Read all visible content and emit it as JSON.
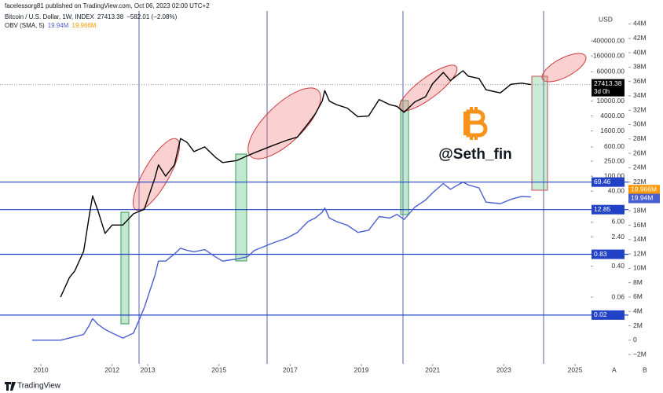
{
  "chart_data": {
    "type": "line",
    "subtitle": "facelessorg81 published on TradingView.com, Oct 06, 2023 02:00 UTC+2",
    "change": "−582.01 (−2.08%)",
    "countdown": "3d 0h",
    "currency": "USD",
    "axis_buttons": [
      "A",
      "B"
    ],
    "watermark": "@Seth_fin",
    "brand": "TradingView",
    "x": [
      2009.75,
      2010.55,
      2010.8,
      2010.95,
      2011.2,
      2011.35,
      2011.45,
      2011.6,
      2011.8,
      2012.0,
      2012.3,
      2012.6,
      2012.9,
      2013.2,
      2013.3,
      2013.5,
      2013.75,
      2013.92,
      2014.1,
      2014.3,
      2014.6,
      2014.9,
      2015.1,
      2015.5,
      2015.8,
      2016.0,
      2016.5,
      2016.9,
      2017.2,
      2017.5,
      2017.7,
      2017.9,
      2017.97,
      2018.1,
      2018.3,
      2018.6,
      2018.9,
      2019.2,
      2019.5,
      2019.8,
      2020.0,
      2020.2,
      2020.5,
      2020.8,
      2021.0,
      2021.3,
      2021.5,
      2021.85,
      2022.0,
      2022.3,
      2022.5,
      2022.9,
      2023.2,
      2023.5,
      2023.76
    ],
    "series": [
      {
        "name": "Bitcoin / U.S. Dollar, 1W, INDEX",
        "color": "#000000",
        "values": [
          null,
          0.06,
          0.2,
          0.3,
          1,
          8,
          30,
          12,
          3,
          5,
          5,
          10,
          13,
          90,
          200,
          100,
          200,
          1000,
          800,
          450,
          600,
          320,
          230,
          260,
          350,
          420,
          650,
          900,
          1100,
          2500,
          4500,
          10000,
          19000,
          10000,
          8000,
          6500,
          3800,
          4000,
          11000,
          8000,
          7200,
          5000,
          9500,
          13000,
          29000,
          58000,
          35000,
          64000,
          46000,
          40000,
          20000,
          16500,
          28000,
          30000,
          27413.38
        ]
      },
      {
        "name": "OBV (SMA, 5)",
        "color": "#4a5fd0",
        "axis": "y2",
        "last_label": "19.94M",
        "values": [
          0,
          0,
          0.3,
          0.5,
          0.8,
          2,
          3,
          2.2,
          1.5,
          1,
          0.3,
          1,
          4.5,
          9,
          11,
          11,
          12,
          12.8,
          12.5,
          12.3,
          12.6,
          11.6,
          11,
          11.3,
          11.6,
          12.5,
          13.5,
          14.2,
          15,
          16.5,
          17,
          17.8,
          18.4,
          17,
          16.5,
          16,
          15,
          15.3,
          17.2,
          17,
          17.5,
          16.8,
          18.5,
          19.5,
          20.5,
          21.8,
          21,
          22,
          21.6,
          21.2,
          19.2,
          19,
          19.6,
          20,
          19.94
        ]
      }
    ],
    "sma_label": {
      "value": 19.966,
      "label": "19.966M",
      "color": "#ff9800"
    },
    "xlim": [
      2008.85,
      2025.44
    ],
    "xticks": [
      2010,
      2012,
      2013,
      2015,
      2017,
      2019,
      2021,
      2023,
      2025
    ],
    "ylim": [
      0.001,
      2500000
    ],
    "log_scale": true,
    "yticks": [
      {
        "value": 400000,
        "label": "400000.00"
      },
      {
        "value": 160000,
        "label": "160000.00"
      },
      {
        "value": 60000,
        "label": "60000.00"
      },
      {
        "value": 10000,
        "label": "10000.00"
      },
      {
        "value": 4000,
        "label": "4000.00"
      },
      {
        "value": 1600,
        "label": "1600.00"
      },
      {
        "value": 600,
        "label": "600.00"
      },
      {
        "value": 250,
        "label": "250.00"
      },
      {
        "value": 100,
        "label": "100.00"
      },
      {
        "value": 40,
        "label": "40.00"
      },
      {
        "value": 6,
        "label": "6.00"
      },
      {
        "value": 2.4,
        "label": "2.40"
      },
      {
        "value": 0.4,
        "label": "0.40"
      },
      {
        "value": 0.06,
        "label": "0.06"
      }
    ],
    "y2lim": [
      -3.3,
      45.8
    ],
    "y2ticks": [
      {
        "value": 44,
        "label": "44M"
      },
      {
        "value": 42,
        "label": "42M"
      },
      {
        "value": 40,
        "label": "40M"
      },
      {
        "value": 38,
        "label": "38M"
      },
      {
        "value": 36,
        "label": "36M"
      },
      {
        "value": 34,
        "label": "34M"
      },
      {
        "value": 32,
        "label": "32M"
      },
      {
        "value": 30,
        "label": "30M"
      },
      {
        "value": 28,
        "label": "28M"
      },
      {
        "value": 26,
        "label": "26M"
      },
      {
        "value": 24,
        "label": "24M"
      },
      {
        "value": 22,
        "label": "22M"
      },
      {
        "value": 18,
        "label": "18M"
      },
      {
        "value": 16,
        "label": "16M"
      },
      {
        "value": 14,
        "label": "14M"
      },
      {
        "value": 12,
        "label": "12M"
      },
      {
        "value": 10,
        "label": "10M"
      },
      {
        "value": 8,
        "label": "8M"
      },
      {
        "value": 6,
        "label": "6M"
      },
      {
        "value": 4,
        "label": "4M"
      },
      {
        "value": 2,
        "label": "2M"
      },
      0,
      {
        "value": -2,
        "label": "−2M"
      }
    ],
    "levels": [
      69.46,
      12.85,
      0.83,
      0.02
    ],
    "level_color": "#2142c6"
  }
}
